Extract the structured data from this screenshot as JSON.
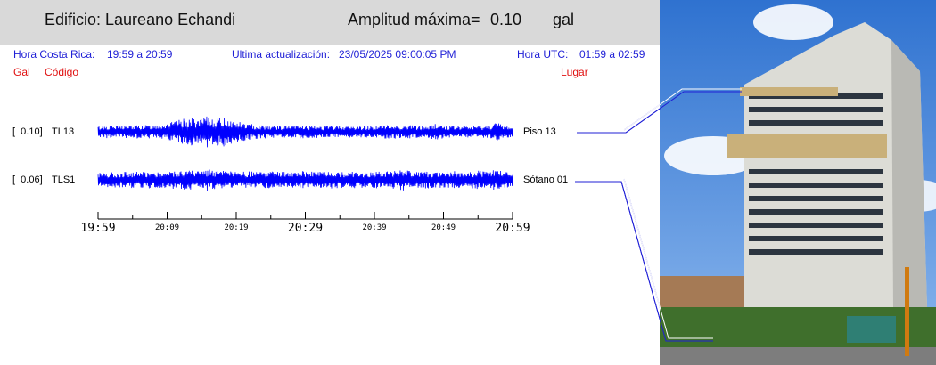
{
  "header": {
    "building_title": "Edificio: Laureano Echandi",
    "max_amplitude_label": "Amplitud máxima=",
    "max_amplitude_value": "0.10",
    "max_amplitude_unit": "gal"
  },
  "info": {
    "cr_time_label": "Hora Costa Rica:",
    "cr_time_range": "19:59 a 20:59",
    "update_label": "Ultima actualización:",
    "update_value": "23/05/2025 09:00:05 PM",
    "utc_label": "Hora UTC:",
    "utc_range": "01:59 a 02:59"
  },
  "columns": {
    "gal": "Gal",
    "code": "Código",
    "place": "Lugar"
  },
  "colors": {
    "trace": "#0000ff",
    "info_text": "#1f1fd6",
    "column_text": "#e01010",
    "header_band": "#d9d9d9"
  },
  "chart_data": {
    "type": "line",
    "title": "",
    "xlabel": "",
    "ylabel": "",
    "x_ticks_major": [
      "19:59",
      "20:29",
      "20:59"
    ],
    "x_ticks_minor": [
      "20:09",
      "20:19",
      "20:39",
      "20:49"
    ],
    "x_tick_labels": [
      "19:59",
      "20:09",
      "20:19",
      "20:29",
      "20:39",
      "20:49",
      "20:59"
    ],
    "series": [
      {
        "code": "TL13",
        "peak_amplitude": "[  0.10]",
        "place": "Piso 13",
        "amplitude_envelope": [
          0.35,
          0.4,
          0.38,
          0.42,
          0.4,
          0.45,
          0.42,
          0.5,
          0.55,
          0.65,
          0.8,
          0.9,
          0.75,
          1.0,
          0.85,
          0.95,
          0.7,
          0.6,
          0.5,
          0.45,
          0.42,
          0.4,
          0.38,
          0.4,
          0.42,
          0.38,
          0.4,
          0.36,
          0.38,
          0.4,
          0.36,
          0.35,
          0.38,
          0.4,
          0.42,
          0.45,
          0.4,
          0.42,
          0.38,
          0.36,
          0.55,
          0.4,
          0.38,
          0.36,
          0.35,
          0.38,
          0.4,
          0.62,
          0.4,
          0.35
        ]
      },
      {
        "code": "TLS1",
        "peak_amplitude": "[  0.06]",
        "place": "Sótano 01",
        "amplitude_envelope": [
          0.45,
          0.5,
          0.48,
          0.5,
          0.52,
          0.5,
          0.55,
          0.5,
          0.52,
          0.58,
          0.6,
          0.62,
          0.55,
          0.7,
          0.6,
          0.55,
          0.52,
          0.5,
          0.52,
          0.5,
          0.55,
          0.5,
          0.52,
          0.5,
          0.55,
          0.52,
          0.5,
          0.55,
          0.52,
          0.5,
          0.58,
          0.5,
          0.52,
          0.55,
          0.6,
          0.55,
          0.7,
          0.52,
          0.5,
          0.55,
          0.5,
          0.52,
          0.55,
          0.5,
          0.52,
          0.6,
          0.5,
          0.65,
          0.5,
          0.48
        ]
      }
    ]
  }
}
